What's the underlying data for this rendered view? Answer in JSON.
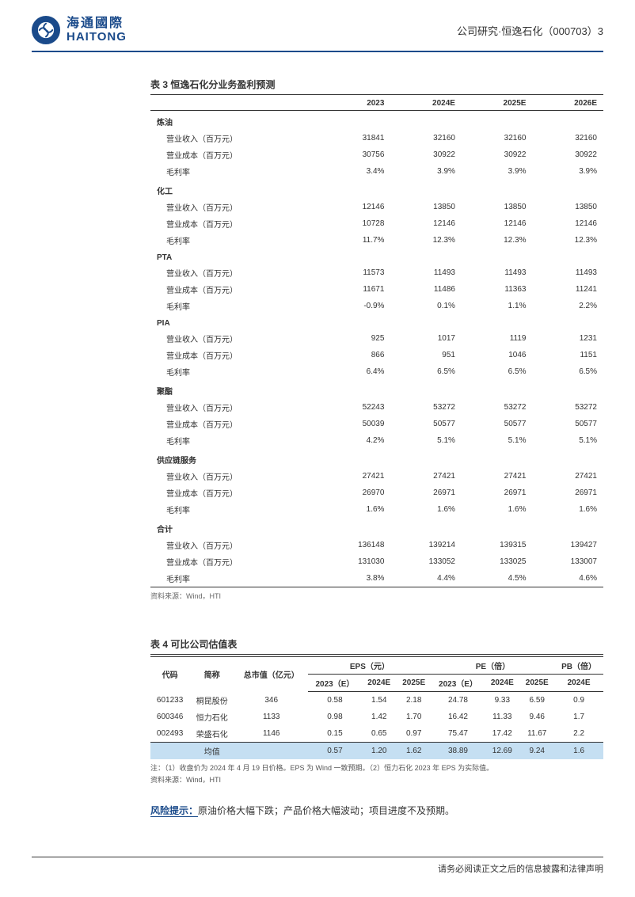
{
  "header": {
    "logo_cn": "海通國際",
    "logo_en": "HAITONG",
    "right_text": "公司研究·恒逸石化（000703）3"
  },
  "table3": {
    "title": "表 3  恒逸石化分业务盈利预测",
    "cols": [
      "",
      "2023",
      "2024E",
      "2025E",
      "2026E"
    ],
    "sections": [
      {
        "name": "炼油",
        "rows": [
          {
            "label": "营业收入（百万元）",
            "vals": [
              "31841",
              "32160",
              "32160",
              "32160"
            ]
          },
          {
            "label": "营业成本（百万元）",
            "vals": [
              "30756",
              "30922",
              "30922",
              "30922"
            ]
          },
          {
            "label": "毛利率",
            "vals": [
              "3.4%",
              "3.9%",
              "3.9%",
              "3.9%"
            ]
          }
        ]
      },
      {
        "name": "化工",
        "rows": [
          {
            "label": "营业收入（百万元）",
            "vals": [
              "12146",
              "13850",
              "13850",
              "13850"
            ]
          },
          {
            "label": "营业成本（百万元）",
            "vals": [
              "10728",
              "12146",
              "12146",
              "12146"
            ]
          },
          {
            "label": "毛利率",
            "vals": [
              "11.7%",
              "12.3%",
              "12.3%",
              "12.3%"
            ]
          }
        ]
      },
      {
        "name": "PTA",
        "rows": [
          {
            "label": "营业收入（百万元）",
            "vals": [
              "11573",
              "11493",
              "11493",
              "11493"
            ]
          },
          {
            "label": "营业成本（百万元）",
            "vals": [
              "11671",
              "11486",
              "11363",
              "11241"
            ]
          },
          {
            "label": "毛利率",
            "vals": [
              "-0.9%",
              "0.1%",
              "1.1%",
              "2.2%"
            ]
          }
        ]
      },
      {
        "name": "PIA",
        "rows": [
          {
            "label": "营业收入（百万元）",
            "vals": [
              "925",
              "1017",
              "1119",
              "1231"
            ]
          },
          {
            "label": "营业成本（百万元）",
            "vals": [
              "866",
              "951",
              "1046",
              "1151"
            ]
          },
          {
            "label": "毛利率",
            "vals": [
              "6.4%",
              "6.5%",
              "6.5%",
              "6.5%"
            ]
          }
        ]
      },
      {
        "name": "聚酯",
        "rows": [
          {
            "label": "营业收入（百万元）",
            "vals": [
              "52243",
              "53272",
              "53272",
              "53272"
            ]
          },
          {
            "label": "营业成本（百万元）",
            "vals": [
              "50039",
              "50577",
              "50577",
              "50577"
            ]
          },
          {
            "label": "毛利率",
            "vals": [
              "4.2%",
              "5.1%",
              "5.1%",
              "5.1%"
            ]
          }
        ]
      },
      {
        "name": "供应链服务",
        "rows": [
          {
            "label": "营业收入（百万元）",
            "vals": [
              "27421",
              "27421",
              "27421",
              "27421"
            ]
          },
          {
            "label": "营业成本（百万元）",
            "vals": [
              "26970",
              "26971",
              "26971",
              "26971"
            ]
          },
          {
            "label": "毛利率",
            "vals": [
              "1.6%",
              "1.6%",
              "1.6%",
              "1.6%"
            ]
          }
        ]
      },
      {
        "name": "合计",
        "rows": [
          {
            "label": "营业收入（百万元）",
            "vals": [
              "136148",
              "139214",
              "139315",
              "139427"
            ]
          },
          {
            "label": "营业成本（百万元）",
            "vals": [
              "131030",
              "133052",
              "133025",
              "133007"
            ]
          },
          {
            "label": "毛利率",
            "vals": [
              "3.8%",
              "4.4%",
              "4.5%",
              "4.6%"
            ]
          }
        ]
      }
    ],
    "source": "资料来源：Wind，HTI"
  },
  "table4": {
    "title": "表 4  可比公司估值表",
    "head_row1": {
      "code": "代码",
      "name": "简称",
      "mktcap": "总市值（亿元）",
      "eps": "EPS（元）",
      "pe": "PE（倍）",
      "pb": "PB（倍）"
    },
    "head_row2": [
      "2023（E）",
      "2024E",
      "2025E",
      "2023（E）",
      "2024E",
      "2025E",
      "2024E"
    ],
    "rows": [
      {
        "code": "601233",
        "name": "桐昆股份",
        "mktcap": "346",
        "eps": [
          "0.58",
          "1.54",
          "2.18"
        ],
        "pe": [
          "24.78",
          "9.33",
          "6.59"
        ],
        "pb": "0.9"
      },
      {
        "code": "600346",
        "name": "恒力石化",
        "mktcap": "1133",
        "eps": [
          "0.98",
          "1.42",
          "1.70"
        ],
        "pe": [
          "16.42",
          "11.33",
          "9.46"
        ],
        "pb": "1.7"
      },
      {
        "code": "002493",
        "name": "荣盛石化",
        "mktcap": "1146",
        "eps": [
          "0.15",
          "0.65",
          "0.97"
        ],
        "pe": [
          "75.47",
          "17.42",
          "11.67"
        ],
        "pb": "2.2"
      }
    ],
    "avg": {
      "label": "均值",
      "eps": [
        "0.57",
        "1.20",
        "1.62"
      ],
      "pe": [
        "38.89",
        "12.69",
        "9.24"
      ],
      "pb": "1.6"
    },
    "note": "注：（1）收盘价为 2024 年 4 月 19 日价格。EPS 为 Wind 一致预期。（2）恒力石化 2023 年 EPS 为实际值。",
    "source": "资料来源：Wind，HTI"
  },
  "risk": {
    "label": "风险提示：",
    "text": "原油价格大幅下跌；产品价格大幅波动；项目进度不及预期。"
  },
  "footer": "请务必阅读正文之后的信息披露和法律声明"
}
